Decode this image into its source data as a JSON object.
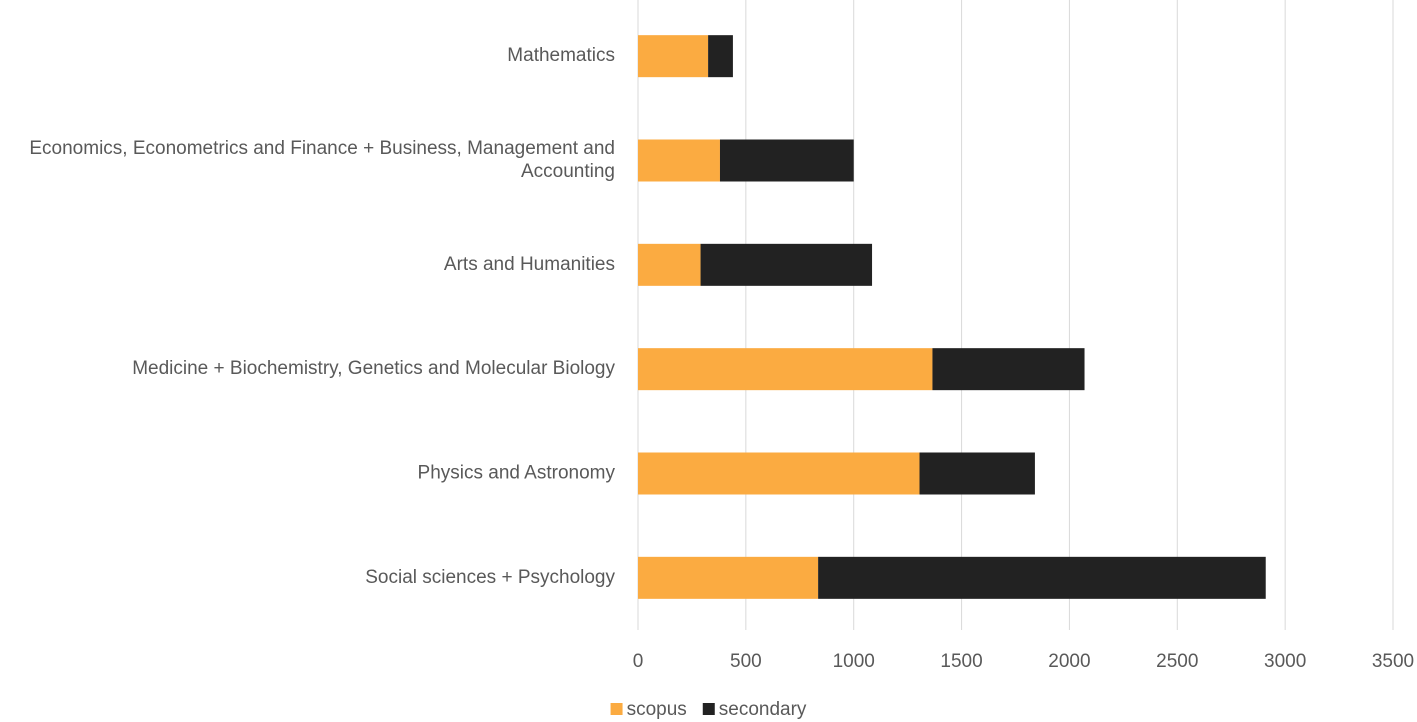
{
  "chart_data": {
    "type": "stacked-barh",
    "categories": [
      "Mathematics",
      "Economics, Econometrics and Finance + Business, Management and Accounting",
      "Arts and Humanities",
      "Medicine + Biochemistry, Genetics and Molecular Biology ",
      "Physics and Astronomy",
      "Social sciences + Psychology"
    ],
    "series": [
      {
        "name": "scopus",
        "color": "#fbab41",
        "values": [
          325,
          380,
          290,
          1365,
          1305,
          835
        ]
      },
      {
        "name": "secondary",
        "color": "#222222",
        "values": [
          115,
          620,
          795,
          705,
          535,
          2075
        ]
      }
    ],
    "xlim": [
      0,
      3500
    ],
    "xticks": [
      0,
      500,
      1000,
      1500,
      2000,
      2500,
      3000,
      3500
    ],
    "grid": true,
    "legend": "bottom"
  }
}
